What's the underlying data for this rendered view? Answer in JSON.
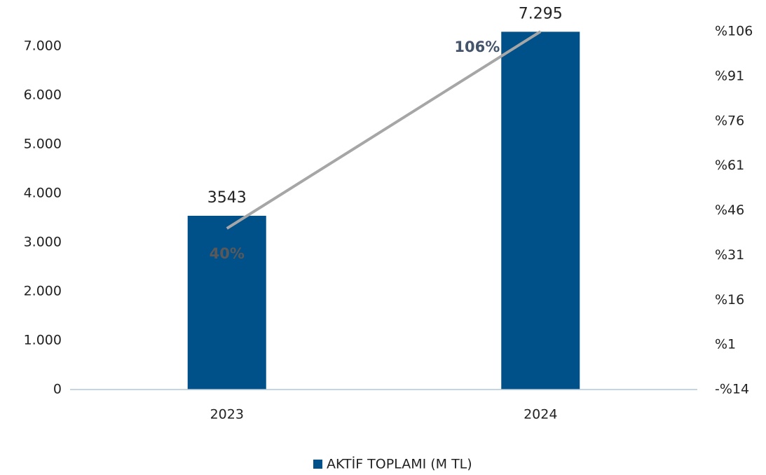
{
  "chart_data": {
    "type": "bar",
    "categories": [
      "2023",
      "2024"
    ],
    "series": [
      {
        "name": "AKTİF TOPLAMI (M TL)",
        "type": "bar",
        "color": "#00508a",
        "values": [
          3543,
          7295
        ],
        "value_labels": [
          "3543",
          "7.295"
        ]
      },
      {
        "type": "line",
        "axis": "y2",
        "color": "#a6a6a6",
        "values": [
          40,
          106
        ],
        "value_labels": [
          "40%",
          "106%"
        ],
        "label_colors": [
          "#595959",
          "#44546a"
        ]
      }
    ],
    "ylim": [
      0,
      7300
    ],
    "yticks": [
      0,
      {
        "value": 1000,
        "label": "1.000"
      },
      {
        "value": 2000,
        "label": "2.000"
      },
      {
        "value": 3000,
        "label": "3.000"
      },
      {
        "value": 4000,
        "label": "4.000"
      },
      {
        "value": 5000,
        "label": "5.000"
      },
      {
        "value": 6000,
        "label": "6.000"
      },
      {
        "value": 7000,
        "label": "7.000"
      }
    ],
    "y2lim": [
      -14,
      106
    ],
    "y2ticks": [
      {
        "value": -14,
        "label": "-%14"
      },
      {
        "value": 1,
        "label": "%1"
      },
      {
        "value": 16,
        "label": "%16"
      },
      {
        "value": 31,
        "label": "%31"
      },
      {
        "value": 46,
        "label": "%46"
      },
      {
        "value": 61,
        "label": "%61"
      },
      {
        "value": 76,
        "label": "%76"
      },
      {
        "value": 91,
        "label": "%91"
      },
      {
        "value": 106,
        "label": "%106"
      }
    ],
    "grid": false,
    "legend": "bottom"
  }
}
